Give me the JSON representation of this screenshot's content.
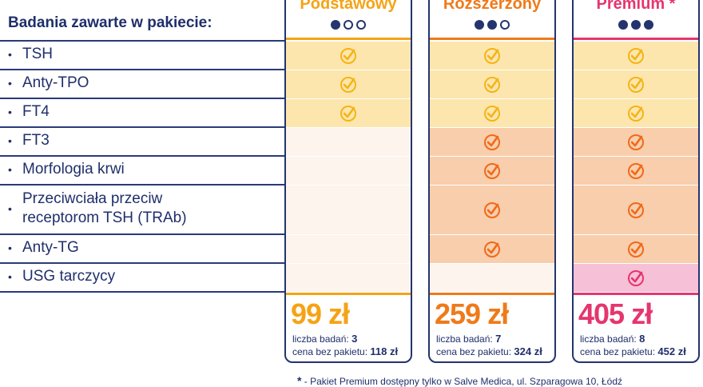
{
  "heading": "Badania zawarte w pakiecie:",
  "tests": [
    {
      "label": "TSH"
    },
    {
      "label": "Anty-TPO"
    },
    {
      "label": "FT4"
    },
    {
      "label": "FT3"
    },
    {
      "label": "Morfologia krwi"
    },
    {
      "label": "Przeciwciała przeciw",
      "label2": "receptorom TSH (TRAb)"
    },
    {
      "label": "Anty-TG"
    },
    {
      "label": "USG tarczycy"
    }
  ],
  "bullet": "•",
  "packages": [
    {
      "name": "Podstawowy",
      "dots_filled": 1,
      "accent": "#f5a315",
      "included": [
        true,
        true,
        true,
        false,
        false,
        false,
        false,
        false
      ],
      "price": "99 zł",
      "count_label": "liczba badań:",
      "count": "3",
      "nopack_label": "cena bez pakietu:",
      "nopack_price": "118 zł"
    },
    {
      "name": "Rozszerzony",
      "dots_filled": 2,
      "accent": "#ef7a1a",
      "included": [
        true,
        true,
        true,
        true,
        true,
        true,
        true,
        false
      ],
      "price": "259 zł",
      "count_label": "liczba badań:",
      "count": "7",
      "nopack_label": "cena bez pakietu:",
      "nopack_price": "324 zł"
    },
    {
      "name": "Premium *",
      "dots_filled": 3,
      "accent": "#e5356f",
      "included": [
        true,
        true,
        true,
        true,
        true,
        true,
        true,
        true
      ],
      "price": "405 zł",
      "count_label": "liczba badań:",
      "count": "8",
      "nopack_label": "cena bez pakietu:",
      "nopack_price": "452 zł"
    }
  ],
  "colors": {
    "navy": "#24346e",
    "yellow_fill": "#fde6ae",
    "orange_fill": "#f8ceac",
    "pink_fill": "#f6c0d6",
    "empty_fill": "#fdf4ee",
    "yellow_check": "#f5b415",
    "orange_check": "#ef6a1a",
    "pink_check": "#e5356f"
  },
  "footnote": "- Pakiet Premium dostępny tylko w Salve Medica, ul. Szparagowa 10, Łódź",
  "footnote_star": "*"
}
